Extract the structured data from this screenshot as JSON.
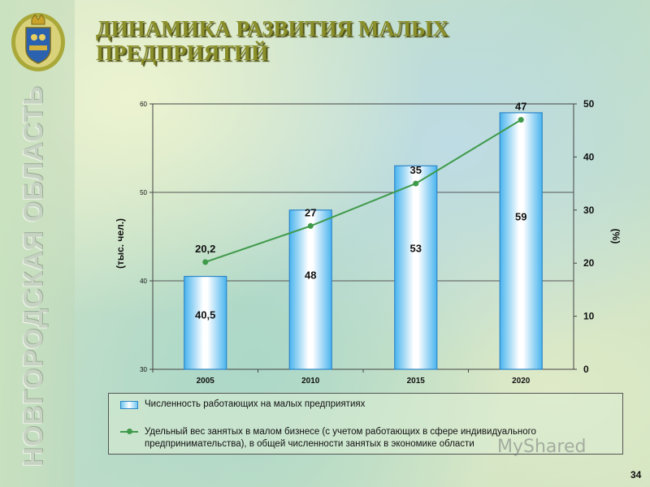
{
  "title": "ДИНАМИКА РАЗВИТИЯ МАЛЫХ ПРЕДПРИЯТИЙ",
  "region": "НОВГОРОДСКАЯ ОБЛАСТЬ",
  "page_number": "34",
  "watermark": "MyShared",
  "colors": {
    "bar_fill": "#6fc6f2",
    "bar_border": "#2e86c8",
    "line": "#3f9a4a",
    "title": "#8a8f2a"
  },
  "icons": {
    "emblem": "coat-of-arms-icon",
    "watermark": "myshared-logo-icon"
  },
  "chart_data": {
    "type": "bar",
    "categories": [
      "2005",
      "2010",
      "2015",
      "2020"
    ],
    "series": [
      {
        "name": "Численность работающих на малых предприятиях",
        "type": "bar",
        "axis": "left",
        "values": [
          40.5,
          48,
          53,
          59
        ],
        "labels": [
          "40,5",
          "48",
          "53",
          "59"
        ]
      },
      {
        "name": "Удельный вес занятых в малом бизнесе (с учетом работающих в сфере индивидуального предпринимательства), в общей численности занятых в экономике области",
        "type": "line",
        "axis": "right",
        "values": [
          20.2,
          27,
          35,
          47
        ],
        "labels": [
          "20,2",
          "27",
          "35",
          "47"
        ]
      }
    ],
    "ylabel_left": "(тыс. чел.)",
    "ylabel_right": "(%)",
    "ylim_left": [
      30,
      60
    ],
    "yticks_left": [
      "30",
      "40",
      "50",
      "60"
    ],
    "ylim_right": [
      0,
      50
    ],
    "yticks_right": [
      "0",
      "10",
      "20",
      "30",
      "40",
      "50"
    ],
    "grid": true,
    "legend_placement": "bottom"
  }
}
